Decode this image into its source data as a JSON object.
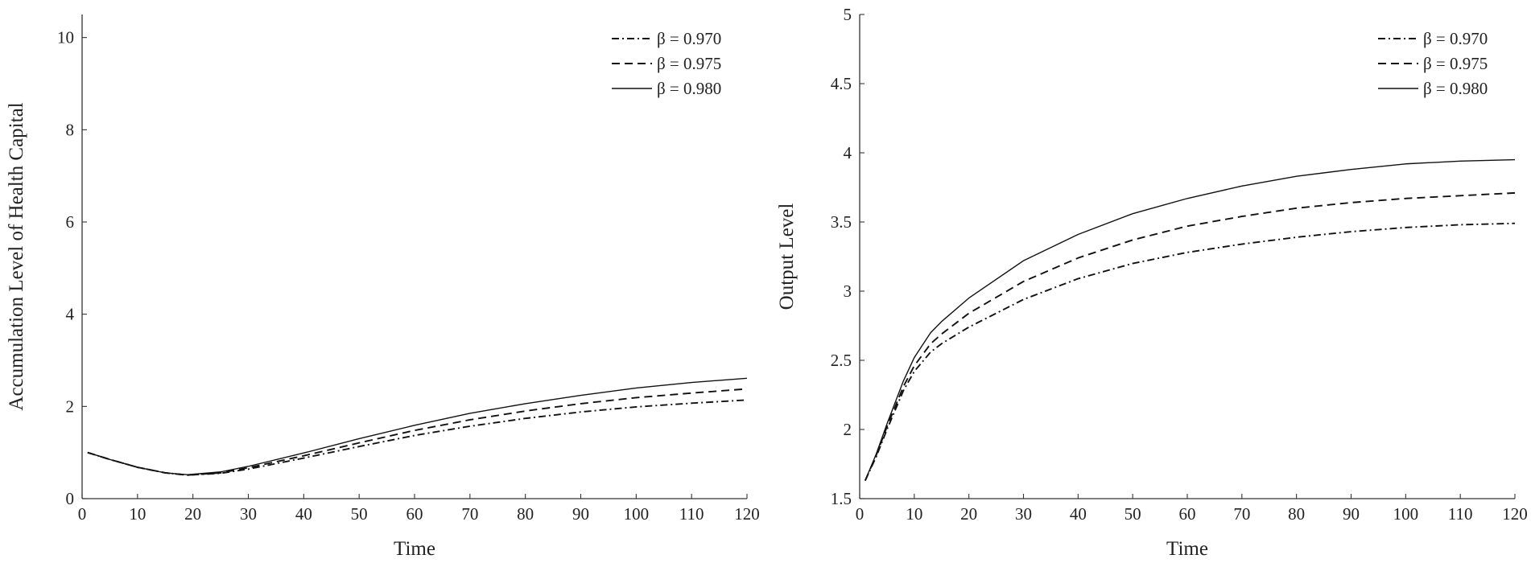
{
  "chart_data": [
    {
      "type": "line",
      "title": "",
      "xlabel": "Time",
      "ylabel": "Accumulation Level of Health Capital",
      "xlim": [
        0,
        120
      ],
      "ylim": [
        0,
        10.5
      ],
      "xticks": [
        0,
        10,
        20,
        30,
        40,
        50,
        60,
        70,
        80,
        90,
        100,
        110,
        120
      ],
      "yticks": [
        0,
        2,
        4,
        6,
        8,
        10
      ],
      "legend": "top-right",
      "grid": false,
      "series": [
        {
          "name": "β = 0.970",
          "style": "dashdot",
          "x": [
            1,
            5,
            10,
            15,
            19,
            25,
            30,
            40,
            50,
            60,
            70,
            80,
            90,
            100,
            110,
            120
          ],
          "y": [
            1.0,
            0.85,
            0.68,
            0.56,
            0.51,
            0.55,
            0.64,
            0.88,
            1.13,
            1.37,
            1.57,
            1.74,
            1.88,
            1.99,
            2.07,
            2.14
          ]
        },
        {
          "name": "β = 0.975",
          "style": "dashed",
          "x": [
            1,
            5,
            10,
            15,
            19,
            25,
            30,
            40,
            50,
            60,
            70,
            80,
            90,
            100,
            110,
            120
          ],
          "y": [
            1.0,
            0.85,
            0.68,
            0.56,
            0.51,
            0.56,
            0.67,
            0.93,
            1.21,
            1.48,
            1.71,
            1.9,
            2.06,
            2.19,
            2.29,
            2.38
          ]
        },
        {
          "name": "β = 0.980",
          "style": "solid",
          "x": [
            1,
            5,
            10,
            15,
            19,
            25,
            30,
            40,
            50,
            60,
            70,
            80,
            90,
            100,
            110,
            120
          ],
          "y": [
            1.0,
            0.85,
            0.68,
            0.56,
            0.52,
            0.58,
            0.7,
            0.99,
            1.3,
            1.59,
            1.85,
            2.06,
            2.24,
            2.4,
            2.52,
            2.61
          ]
        }
      ]
    },
    {
      "type": "line",
      "title": "",
      "xlabel": "Time",
      "ylabel": "Output Level",
      "xlim": [
        0,
        120
      ],
      "ylim": [
        1.5,
        5
      ],
      "xticks": [
        0,
        10,
        20,
        30,
        40,
        50,
        60,
        70,
        80,
        90,
        100,
        110,
        120
      ],
      "yticks": [
        1.5,
        2,
        2.5,
        3,
        3.5,
        4,
        4.5,
        5
      ],
      "legend": "top-right",
      "grid": false,
      "series": [
        {
          "name": "β = 0.970",
          "style": "dashdot",
          "x": [
            1,
            3,
            5,
            8,
            10,
            13,
            15,
            20,
            30,
            40,
            50,
            60,
            70,
            80,
            90,
            100,
            110,
            120
          ],
          "y": [
            1.63,
            1.8,
            2.0,
            2.28,
            2.42,
            2.56,
            2.62,
            2.74,
            2.94,
            3.09,
            3.2,
            3.28,
            3.34,
            3.39,
            3.43,
            3.46,
            3.48,
            3.49
          ]
        },
        {
          "name": "β = 0.975",
          "style": "dashed",
          "x": [
            1,
            3,
            5,
            8,
            10,
            13,
            15,
            20,
            30,
            40,
            50,
            60,
            70,
            80,
            90,
            100,
            110,
            120
          ],
          "y": [
            1.63,
            1.81,
            2.02,
            2.31,
            2.46,
            2.62,
            2.69,
            2.84,
            3.07,
            3.24,
            3.37,
            3.47,
            3.54,
            3.6,
            3.64,
            3.67,
            3.69,
            3.71
          ]
        },
        {
          "name": "β = 0.980",
          "style": "solid",
          "x": [
            1,
            3,
            5,
            8,
            10,
            13,
            15,
            20,
            30,
            40,
            50,
            60,
            70,
            80,
            90,
            100,
            110,
            120
          ],
          "y": [
            1.63,
            1.82,
            2.04,
            2.35,
            2.52,
            2.7,
            2.78,
            2.95,
            3.22,
            3.41,
            3.56,
            3.67,
            3.76,
            3.83,
            3.88,
            3.92,
            3.94,
            3.95
          ]
        }
      ]
    }
  ]
}
